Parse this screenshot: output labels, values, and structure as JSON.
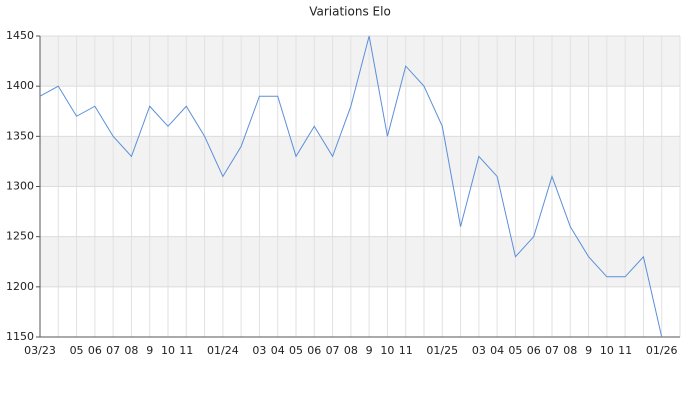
{
  "chart_data": {
    "type": "line",
    "title": "Variations Elo",
    "categories": [
      "03/23",
      null,
      "05",
      "06",
      "07",
      "08",
      "9",
      "10",
      "11",
      null,
      "01/24",
      null,
      "03",
      "04",
      "05",
      "06",
      "07",
      "08",
      "9",
      "10",
      "11",
      null,
      "01/25",
      null,
      "03",
      "04",
      "05",
      "06",
      "07",
      "08",
      "9",
      "10",
      "11",
      null,
      "01/26"
    ],
    "values": [
      1390,
      1400,
      1370,
      1380,
      1350,
      1330,
      1380,
      1360,
      1380,
      1350,
      1310,
      1340,
      1390,
      1390,
      1330,
      1360,
      1330,
      1380,
      1450,
      1350,
      1420,
      1400,
      1360,
      1260,
      1330,
      1310,
      1230,
      1250,
      1310,
      1260,
      1230,
      1210,
      1210,
      1230,
      1150
    ],
    "color": "#5b8fd9",
    "ylim": [
      1150,
      1450
    ],
    "yticks": [
      1150,
      1200,
      1250,
      1300,
      1350,
      1400,
      1450
    ],
    "grid": true
  }
}
